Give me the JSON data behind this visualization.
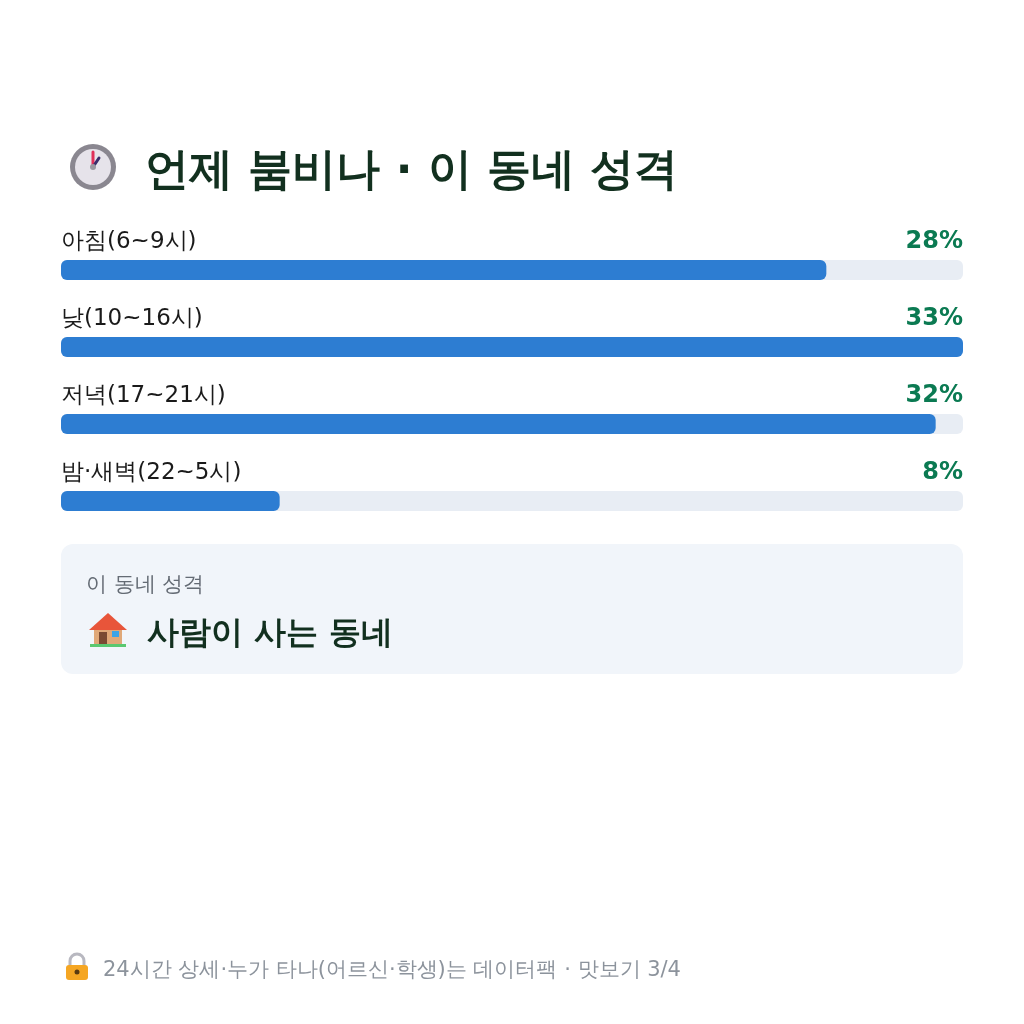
{
  "chart_data": {
    "type": "bar",
    "orientation": "horizontal",
    "title": "언제 붐비나 · 이 동네 성격",
    "categories": [
      "아침(6~9시)",
      "낮(10~16시)",
      "저녁(17~21시)",
      "밤·새벽(22~5시)"
    ],
    "values": [
      28,
      33,
      32,
      8
    ],
    "color": "#2d7dd2",
    "value_labels": [
      "28%",
      "33%",
      "32%",
      "8%"
    ],
    "annotations": [
      "이 동네 성격",
      "사람이 사는 동네",
      "24시간 상세·누가 타나(어르신·학생)는 데이터팩 · 맛보기 3/4"
    ]
  }
}
